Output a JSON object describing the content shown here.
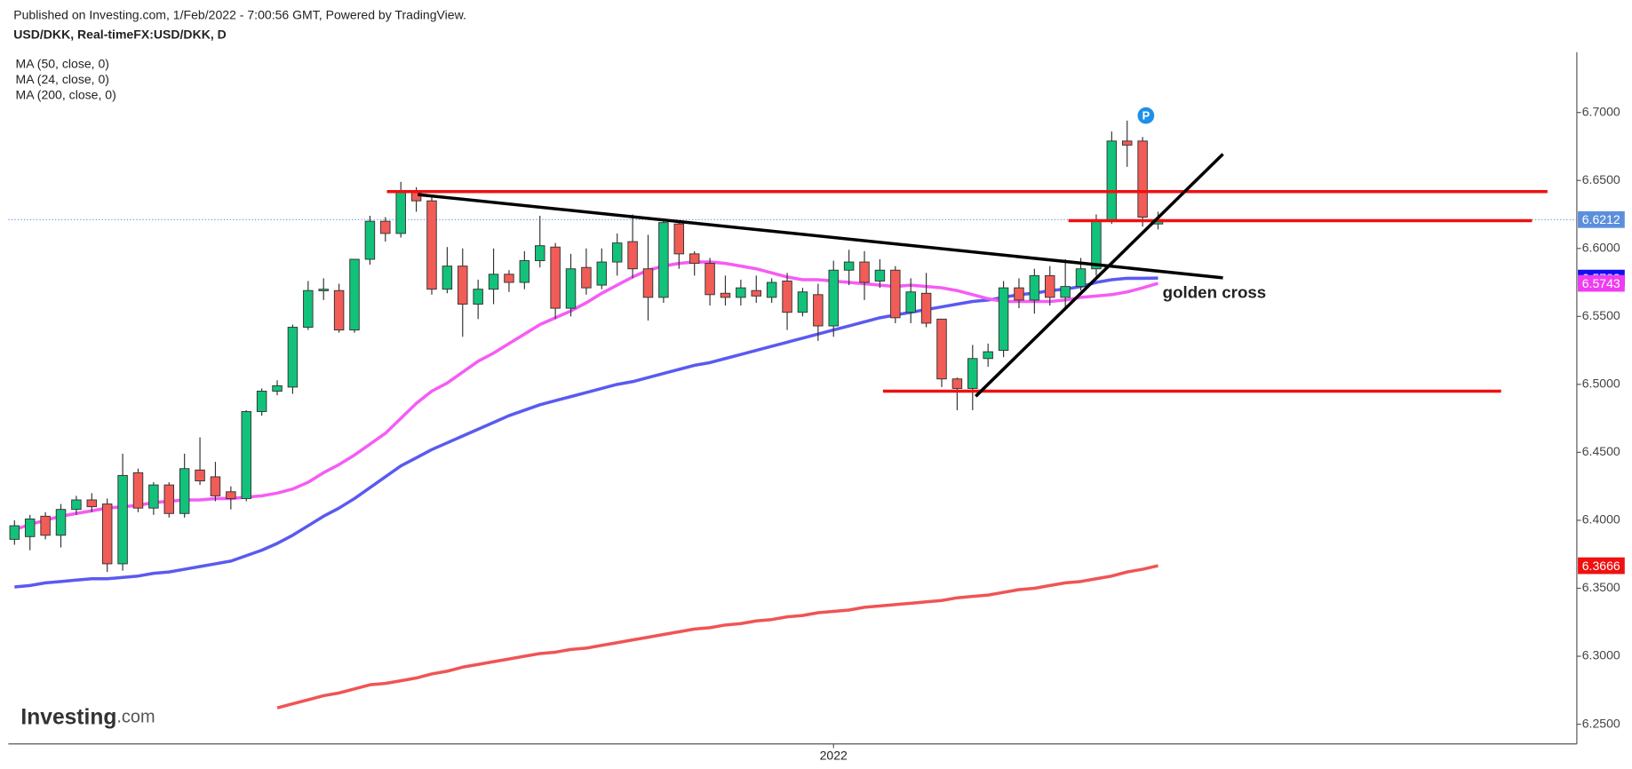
{
  "chart_data": {
    "type": "candlestick",
    "published": "Published on Investing.com, 1/Feb/2022 - 7:00:56 GMT, Powered by TradingView.",
    "title": "USD/DKK, Real-timeFX:USD/DKK, D",
    "logo": {
      "brand": "Investing",
      "suffix": ".com"
    },
    "annotation": "golden cross",
    "up_color": "#12c27a",
    "down_color": "#f15c57",
    "categories": [
      null,
      null,
      null,
      null,
      null,
      null,
      null,
      null,
      null,
      null,
      null,
      null,
      null,
      null,
      null,
      null,
      null,
      null,
      null,
      null,
      null,
      null,
      null,
      null,
      null,
      null,
      null,
      null,
      null,
      null,
      null,
      null,
      null,
      null,
      null,
      null,
      null,
      null,
      null,
      null,
      null,
      null,
      null,
      null,
      null,
      null,
      null,
      null,
      null,
      null,
      null,
      null,
      null,
      "2022",
      null,
      null,
      null,
      null,
      null,
      null,
      null,
      null,
      null,
      null,
      null,
      null,
      null,
      null,
      null,
      null,
      null,
      null,
      null,
      null,
      null
    ],
    "open": [
      6.386,
      6.388,
      6.403,
      6.389,
      6.408,
      6.415,
      6.412,
      6.368,
      6.435,
      6.409,
      6.426,
      6.405,
      6.437,
      6.432,
      6.421,
      6.416,
      6.48,
      6.495,
      6.498,
      6.542,
      6.569,
      6.569,
      6.54,
      6.592,
      6.62,
      6.611,
      6.642,
      6.635,
      6.57,
      6.587,
      6.559,
      6.57,
      6.581,
      6.575,
      6.591,
      6.601,
      6.556,
      6.586,
      6.573,
      6.59,
      6.605,
      6.585,
      6.564,
      6.618,
      6.596,
      6.589,
      6.567,
      6.564,
      6.569,
      6.564,
      6.576,
      6.553,
      6.566,
      6.543,
      6.584,
      6.59,
      6.576,
      6.584,
      6.553,
      6.567,
      6.548,
      6.504,
      6.497,
      6.519,
      6.525,
      6.571,
      6.562,
      6.58,
      6.564,
      6.572,
      6.585,
      6.62,
      6.679,
      6.679,
      6.618
    ],
    "high": [
      6.4,
      6.404,
      6.406,
      6.412,
      6.418,
      6.42,
      6.416,
      6.449,
      6.438,
      6.428,
      6.428,
      6.449,
      6.461,
      6.443,
      6.425,
      6.481,
      6.497,
      6.503,
      6.544,
      6.576,
      6.578,
      6.574,
      6.592,
      6.624,
      6.623,
      6.649,
      6.645,
      6.639,
      6.601,
      6.6,
      6.577,
      6.6,
      6.584,
      6.598,
      6.624,
      6.604,
      6.596,
      6.6,
      6.6,
      6.611,
      6.625,
      6.61,
      6.622,
      6.62,
      6.598,
      6.593,
      6.58,
      6.577,
      6.58,
      6.578,
      6.582,
      6.571,
      6.574,
      6.591,
      6.599,
      6.598,
      6.592,
      6.587,
      6.578,
      6.582,
      6.548,
      6.505,
      6.529,
      6.53,
      6.576,
      6.578,
      6.585,
      6.587,
      6.592,
      6.593,
      6.625,
      6.686,
      6.694,
      6.682,
      6.627
    ],
    "low": [
      6.382,
      6.378,
      6.386,
      6.38,
      6.404,
      6.406,
      6.362,
      6.363,
      6.406,
      6.404,
      6.402,
      6.402,
      6.426,
      6.414,
      6.408,
      6.414,
      6.477,
      6.492,
      6.493,
      6.54,
      6.562,
      6.538,
      6.538,
      6.588,
      6.605,
      6.608,
      6.627,
      6.566,
      6.567,
      6.535,
      6.548,
      6.559,
      6.568,
      6.57,
      6.586,
      6.548,
      6.55,
      6.566,
      6.57,
      6.58,
      6.578,
      6.547,
      6.56,
      6.585,
      6.58,
      6.558,
      6.558,
      6.558,
      6.56,
      6.56,
      6.54,
      6.55,
      6.532,
      6.535,
      6.573,
      6.562,
      6.571,
      6.545,
      6.545,
      6.542,
      6.498,
      6.481,
      6.481,
      6.513,
      6.52,
      6.556,
      6.552,
      6.558,
      6.556,
      6.569,
      6.58,
      6.618,
      6.66,
      6.616,
      6.614
    ],
    "close": [
      6.396,
      6.401,
      6.389,
      6.408,
      6.415,
      6.41,
      6.368,
      6.433,
      6.409,
      6.426,
      6.405,
      6.438,
      6.429,
      6.418,
      6.416,
      6.48,
      6.495,
      6.499,
      6.542,
      6.569,
      6.57,
      6.54,
      6.592,
      6.62,
      6.611,
      6.641,
      6.635,
      6.57,
      6.587,
      6.559,
      6.57,
      6.581,
      6.575,
      6.591,
      6.602,
      6.556,
      6.585,
      6.571,
      6.59,
      6.604,
      6.585,
      6.564,
      6.619,
      6.596,
      6.589,
      6.566,
      6.564,
      6.571,
      6.565,
      6.575,
      6.553,
      6.568,
      6.543,
      6.584,
      6.59,
      6.575,
      6.584,
      6.549,
      6.568,
      6.545,
      6.504,
      6.497,
      6.519,
      6.524,
      6.571,
      6.562,
      6.58,
      6.564,
      6.572,
      6.585,
      6.62,
      6.679,
      6.676,
      6.623,
      6.6212
    ],
    "last_color": "#5b8fdc",
    "series": [
      {
        "name": "MA (50, close, 0)",
        "color": "#5a5af0",
        "label_color": "#1010f0",
        "values": [
          6.351,
          6.352,
          6.354,
          6.355,
          6.356,
          6.357,
          6.357,
          6.358,
          6.359,
          6.361,
          6.362,
          6.364,
          6.366,
          6.368,
          6.37,
          6.374,
          6.378,
          6.383,
          6.389,
          6.396,
          6.403,
          6.409,
          6.416,
          6.424,
          6.432,
          6.44,
          6.446,
          6.452,
          6.457,
          6.462,
          6.467,
          6.472,
          6.477,
          6.481,
          6.485,
          6.488,
          6.491,
          6.494,
          6.497,
          6.5,
          6.502,
          6.505,
          6.508,
          6.511,
          6.514,
          6.516,
          6.519,
          6.522,
          6.525,
          6.528,
          6.531,
          6.534,
          6.537,
          6.54,
          6.543,
          6.546,
          6.549,
          6.551,
          6.553,
          6.555,
          6.557,
          6.559,
          6.561,
          6.562,
          6.564,
          6.566,
          6.567,
          6.569,
          6.57,
          6.572,
          6.575,
          6.577,
          6.578,
          6.578,
          6.5782
        ]
      },
      {
        "name": "MA (24, close, 0)",
        "color": "#f55cf5",
        "label_color": "#f03cf0",
        "values": [
          6.393,
          6.397,
          6.4,
          6.403,
          6.405,
          6.407,
          6.409,
          6.41,
          6.411,
          6.413,
          6.414,
          6.415,
          6.415,
          6.416,
          6.416,
          6.417,
          6.418,
          6.42,
          6.423,
          6.428,
          6.435,
          6.441,
          6.448,
          6.456,
          6.464,
          6.475,
          6.486,
          6.495,
          6.501,
          6.509,
          6.517,
          6.523,
          6.53,
          6.537,
          6.544,
          6.549,
          6.554,
          6.56,
          6.567,
          6.573,
          6.579,
          6.584,
          6.587,
          6.589,
          6.59,
          6.59,
          6.589,
          6.587,
          6.585,
          6.582,
          6.579,
          6.577,
          6.577,
          6.576,
          6.575,
          6.574,
          6.573,
          6.572,
          6.573,
          6.572,
          6.571,
          6.569,
          6.566,
          6.563,
          6.561,
          6.561,
          6.561,
          6.561,
          6.562,
          6.564,
          6.565,
          6.566,
          6.568,
          6.571,
          6.5743
        ]
      },
      {
        "name": "MA (200, close, 0)",
        "color": "#f05454",
        "label_color": "#f01010",
        "values": [
          null,
          null,
          null,
          null,
          null,
          null,
          null,
          null,
          null,
          null,
          null,
          null,
          null,
          null,
          null,
          null,
          null,
          6.262,
          6.265,
          6.268,
          6.271,
          6.273,
          6.276,
          6.279,
          6.28,
          6.282,
          6.284,
          6.287,
          6.289,
          6.292,
          6.294,
          6.296,
          6.298,
          6.3,
          6.302,
          6.303,
          6.305,
          6.306,
          6.308,
          6.31,
          6.312,
          6.314,
          6.316,
          6.318,
          6.32,
          6.321,
          6.323,
          6.324,
          6.326,
          6.327,
          6.329,
          6.33,
          6.332,
          6.333,
          6.334,
          6.336,
          6.337,
          6.338,
          6.339,
          6.34,
          6.341,
          6.343,
          6.344,
          6.345,
          6.347,
          6.349,
          6.35,
          6.352,
          6.354,
          6.355,
          6.357,
          6.359,
          6.362,
          6.364,
          6.3666
        ]
      }
    ],
    "lines": [
      {
        "from": [
          24.1,
          6.6418
        ],
        "to": [
          99.2,
          6.6418
        ],
        "color": "#ee1111"
      },
      {
        "from": [
          68.2,
          6.6204
        ],
        "to": [
          98.2,
          6.6204
        ],
        "color": "#ee1111"
      },
      {
        "from": [
          56.2,
          6.495
        ],
        "to": [
          96.2,
          6.495
        ],
        "color": "#ee1111"
      },
      {
        "from": [
          26.1,
          6.6396
        ],
        "to": [
          78.2,
          6.5784
        ],
        "color": "#000000"
      },
      {
        "from": [
          62.2,
          6.4912
        ],
        "to": [
          78.2,
          6.6694
        ],
        "color": "#000000"
      }
    ],
    "xlim": [
      -0.4,
      101.1
    ],
    "ylim": [
      6.2355,
      6.7444
    ],
    "yticks": [
      {
        "value": 6.25,
        "label": "6.2500"
      },
      {
        "value": 6.3,
        "label": "6.3000"
      },
      {
        "value": 6.35,
        "label": "6.3500"
      },
      {
        "value": 6.4,
        "label": "6.4000"
      },
      {
        "value": 6.45,
        "label": "6.4500"
      },
      {
        "value": 6.5,
        "label": "6.5000"
      },
      {
        "value": 6.55,
        "label": "6.5500"
      },
      {
        "value": 6.6,
        "label": "6.6000"
      },
      {
        "value": 6.65,
        "label": "6.6500"
      },
      {
        "value": 6.7,
        "label": "6.7000"
      }
    ]
  }
}
